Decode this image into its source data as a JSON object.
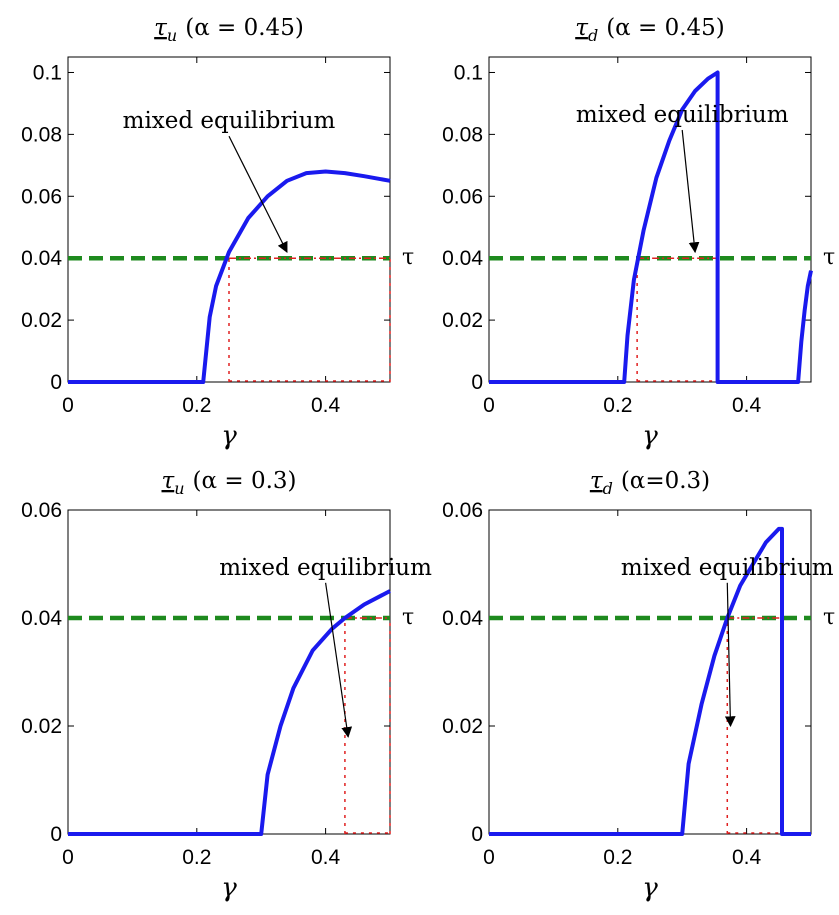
{
  "chart_data": [
    {
      "type": "line",
      "title": "τ_u (α = 0.45)",
      "xlabel": "γ",
      "xlim": [
        0,
        0.5
      ],
      "ylim": [
        0,
        0.105
      ],
      "xticks": [
        "0",
        "0.2",
        "0.4"
      ],
      "yticks": [
        "0",
        "0.02",
        "0.04",
        "0.06",
        "0.08",
        "0.1"
      ],
      "series": [
        {
          "values": [
            [
              0,
              0
            ],
            [
              0.21,
              0
            ],
            [
              0.22,
              0.021
            ],
            [
              0.23,
              0.031
            ],
            [
              0.25,
              0.042
            ],
            [
              0.28,
              0.053
            ],
            [
              0.31,
              0.06
            ],
            [
              0.34,
              0.065
            ],
            [
              0.37,
              0.0675
            ],
            [
              0.4,
              0.068
            ],
            [
              0.43,
              0.0675
            ],
            [
              0.46,
              0.0665
            ],
            [
              0.5,
              0.065
            ]
          ]
        }
      ],
      "threshold": {
        "value": 0.04,
        "label": "τ"
      },
      "mixed_interval": [
        0.25,
        0.5
      ],
      "annotation": {
        "text": "mixed equilibrium",
        "text_at": [
          0.25,
          0.082
        ],
        "arrow_to": [
          0.34,
          0.042
        ]
      }
    },
    {
      "type": "line",
      "title": "τ_d (α = 0.45)",
      "xlabel": "γ",
      "xlim": [
        0,
        0.5
      ],
      "ylim": [
        0,
        0.105
      ],
      "xticks": [
        "0",
        "0.2",
        "0.4"
      ],
      "yticks": [
        "0",
        "0.02",
        "0.04",
        "0.06",
        "0.08",
        "0.1"
      ],
      "series": [
        {
          "values": [
            [
              0,
              0
            ],
            [
              0.21,
              0
            ],
            [
              0.215,
              0.015
            ],
            [
              0.225,
              0.033
            ],
            [
              0.24,
              0.049
            ],
            [
              0.26,
              0.066
            ],
            [
              0.28,
              0.078
            ],
            [
              0.3,
              0.088
            ],
            [
              0.32,
              0.094
            ],
            [
              0.34,
              0.098
            ],
            [
              0.355,
              0.1
            ],
            [
              0.355,
              0
            ],
            [
              0.48,
              0
            ],
            [
              0.485,
              0.013
            ],
            [
              0.49,
              0.023
            ],
            [
              0.495,
              0.031
            ],
            [
              0.5,
              0.036
            ]
          ]
        }
      ],
      "threshold": {
        "value": 0.04,
        "label": "τ"
      },
      "mixed_interval": [
        0.23,
        0.355
      ],
      "annotation": {
        "text": "mixed equilibrium",
        "text_at": [
          0.3,
          0.084
        ],
        "arrow_to": [
          0.32,
          0.042
        ]
      }
    },
    {
      "type": "line",
      "title": "τ_u (α = 0.3)",
      "xlabel": "γ",
      "xlim": [
        0,
        0.5
      ],
      "ylim": [
        0,
        0.06
      ],
      "xticks": [
        "0",
        "0.2",
        "0.4"
      ],
      "yticks": [
        "0",
        "0.02",
        "0.04",
        "0.06"
      ],
      "series": [
        {
          "values": [
            [
              0,
              0
            ],
            [
              0.3,
              0
            ],
            [
              0.31,
              0.011
            ],
            [
              0.33,
              0.02
            ],
            [
              0.35,
              0.027
            ],
            [
              0.38,
              0.034
            ],
            [
              0.41,
              0.038
            ],
            [
              0.43,
              0.04
            ],
            [
              0.46,
              0.0425
            ],
            [
              0.5,
              0.045
            ]
          ]
        }
      ],
      "threshold": {
        "value": 0.04,
        "label": "τ"
      },
      "mixed_interval": [
        0.43,
        0.5
      ],
      "annotation": {
        "text": "mixed equilibrium",
        "text_at": [
          0.4,
          0.048
        ],
        "arrow_to": [
          0.435,
          0.018
        ]
      }
    },
    {
      "type": "line",
      "title": "τ_d (α=0.3)",
      "xlabel": "γ",
      "xlim": [
        0,
        0.5
      ],
      "ylim": [
        0,
        0.06
      ],
      "xticks": [
        "0",
        "0.2",
        "0.4"
      ],
      "yticks": [
        "0",
        "0.02",
        "0.04",
        "0.06"
      ],
      "series": [
        {
          "values": [
            [
              0,
              0
            ],
            [
              0.3,
              0
            ],
            [
              0.31,
              0.013
            ],
            [
              0.33,
              0.024
            ],
            [
              0.35,
              0.033
            ],
            [
              0.37,
              0.04
            ],
            [
              0.39,
              0.046
            ],
            [
              0.41,
              0.05
            ],
            [
              0.43,
              0.054
            ],
            [
              0.45,
              0.0565
            ],
            [
              0.455,
              0.0565
            ],
            [
              0.455,
              0
            ],
            [
              0.5,
              0
            ]
          ]
        }
      ],
      "threshold": {
        "value": 0.04,
        "label": "τ"
      },
      "mixed_interval": [
        0.37,
        0.455
      ],
      "annotation": {
        "text": "mixed equilibrium",
        "text_at": [
          0.37,
          0.048
        ],
        "arrow_to": [
          0.375,
          0.02
        ]
      }
    }
  ]
}
